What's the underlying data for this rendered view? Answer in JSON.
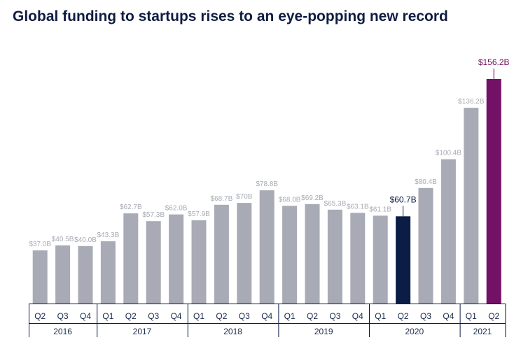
{
  "title": "Global funding to startups rises to an eye-popping new record",
  "colors": {
    "bar": "#a8abb5",
    "highlight_2020_q2": "#0b1c45",
    "highlight_2021_q2": "#731166",
    "label": "#a8abb5",
    "axis": "#0b1c45"
  },
  "chart_data": {
    "type": "bar",
    "categories": [
      "2016 Q2",
      "2016 Q3",
      "2016 Q4",
      "2017 Q1",
      "2017 Q2",
      "2017 Q3",
      "2017 Q4",
      "2018 Q1",
      "2018 Q2",
      "2018 Q3",
      "2018 Q4",
      "2019 Q1",
      "2019 Q2",
      "2019 Q3",
      "2019 Q4",
      "2020 Q1",
      "2020 Q2",
      "2020 Q3",
      "2020 Q4",
      "2021 Q1",
      "2021 Q2"
    ],
    "quarters": [
      "Q2",
      "Q3",
      "Q4",
      "Q1",
      "Q2",
      "Q3",
      "Q4",
      "Q1",
      "Q2",
      "Q3",
      "Q4",
      "Q1",
      "Q2",
      "Q3",
      "Q4",
      "Q1",
      "Q2",
      "Q3",
      "Q4",
      "Q1",
      "Q2"
    ],
    "years": [
      {
        "label": "2016",
        "count": 3
      },
      {
        "label": "2017",
        "count": 4
      },
      {
        "label": "2018",
        "count": 4
      },
      {
        "label": "2019",
        "count": 4
      },
      {
        "label": "2020",
        "count": 4
      },
      {
        "label": "2021",
        "count": 2
      }
    ],
    "values": [
      37.0,
      40.5,
      40.0,
      43.3,
      62.7,
      57.3,
      62.0,
      57.9,
      68.7,
      70,
      78.8,
      68.0,
      69.2,
      65.3,
      63.1,
      61.1,
      60.7,
      80.4,
      100.4,
      136.2,
      156.2
    ],
    "data_labels": [
      "$37.0B",
      "$40.5B",
      "$40.0B",
      "$43.3B",
      "$62.7B",
      "$57.3B",
      "$62.0B",
      "$57.9B",
      "$68.7B",
      "$70B",
      "$78.8B",
      "$68.0B",
      "$69.2B",
      "$65.3B",
      "$63.1B",
      "$61.1B",
      "$60.7B",
      "$80.4B",
      "$100.4B",
      "$136.2B",
      "$156.2B"
    ],
    "highlights": [
      {
        "index": 16,
        "color": "#0b1c45"
      },
      {
        "index": 20,
        "color": "#731166"
      }
    ],
    "unit": "$B",
    "xlabel": "",
    "ylabel": "",
    "ylim": [
      0,
      156.2
    ],
    "grid": false,
    "legend": "none"
  }
}
